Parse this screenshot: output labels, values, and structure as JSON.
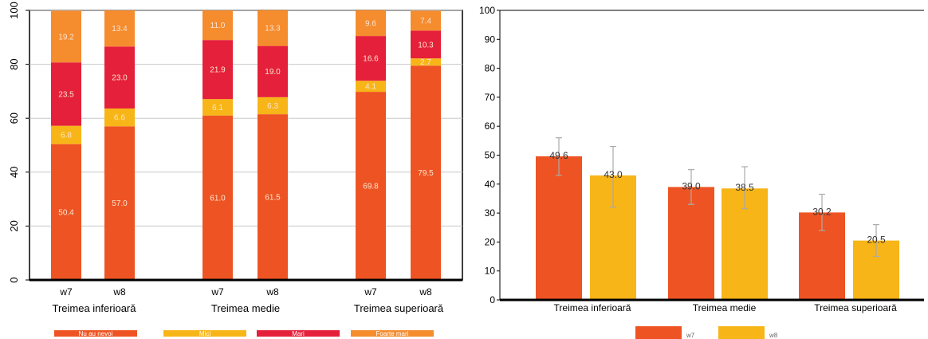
{
  "chart_data": [
    {
      "type": "bar",
      "stacked": true,
      "percent_axis": true,
      "ylim": [
        0,
        100
      ],
      "yticks": [
        "0",
        "20",
        "40",
        "60",
        "80",
        "100"
      ],
      "grid": true,
      "legend_position": "bottom",
      "groups": [
        "Treimea inferioară",
        "Treimea medie",
        "Treimea superioară"
      ],
      "categories": [
        "w7",
        "w8",
        "w7",
        "w8",
        "w7",
        "w8"
      ],
      "value_labels": {
        "Nu au nevoi": [
          "50.4",
          "57.0",
          "61.0",
          "61.5",
          "69.8",
          "79.5"
        ],
        "Mici": [
          "6.8",
          "6.6",
          "6.1",
          "6.3",
          "4.1",
          "2.7"
        ],
        "Mari": [
          "23.5",
          "23.0",
          "21.9",
          "19.0",
          "16.6",
          "10.3"
        ],
        "Foarte mari": [
          "19.2",
          "13.4",
          "11.0",
          "13.3",
          "9.6",
          "7.4"
        ]
      },
      "series": [
        {
          "name": "Nu au nevoi",
          "color": "#ee5423",
          "values": [
            50.4,
            57.0,
            61.0,
            61.5,
            69.8,
            79.5
          ]
        },
        {
          "name": "Mici",
          "color": "#f7b517",
          "values": [
            6.8,
            6.6,
            6.1,
            6.3,
            4.1,
            2.7
          ]
        },
        {
          "name": "Mari",
          "color": "#e5203a",
          "values": [
            23.5,
            23.0,
            21.9,
            19.0,
            16.6,
            10.3
          ]
        },
        {
          "name": "Foarte mari",
          "color": "#f58c2e",
          "values": [
            19.2,
            13.4,
            11.0,
            13.3,
            9.6,
            7.4
          ]
        }
      ]
    },
    {
      "type": "bar",
      "ylim": [
        0,
        100
      ],
      "yticks": [
        "0",
        "10",
        "20",
        "30",
        "40",
        "50",
        "60",
        "70",
        "80",
        "90",
        "100"
      ],
      "grid": false,
      "error_bars": true,
      "legend_position": "bottom",
      "categories": [
        "Treimea inferioară",
        "Treimea medie",
        "Treimea superioară"
      ],
      "value_labels": {
        "w7": [
          "49.6",
          "39.0",
          "30.2"
        ],
        "w8": [
          "43.0",
          "38.5",
          "20.5"
        ]
      },
      "series": [
        {
          "name": "w7",
          "color": "#ee5423",
          "values": [
            49.6,
            39.0,
            30.2
          ],
          "error_low": [
            43.0,
            33.0,
            24.0
          ],
          "error_high": [
            56.0,
            45.0,
            36.5
          ]
        },
        {
          "name": "w8",
          "color": "#f7b517",
          "values": [
            43.0,
            38.5,
            20.5
          ],
          "error_low": [
            32.0,
            31.5,
            15.0
          ],
          "error_high": [
            53.0,
            46.0,
            26.0
          ]
        }
      ]
    }
  ]
}
